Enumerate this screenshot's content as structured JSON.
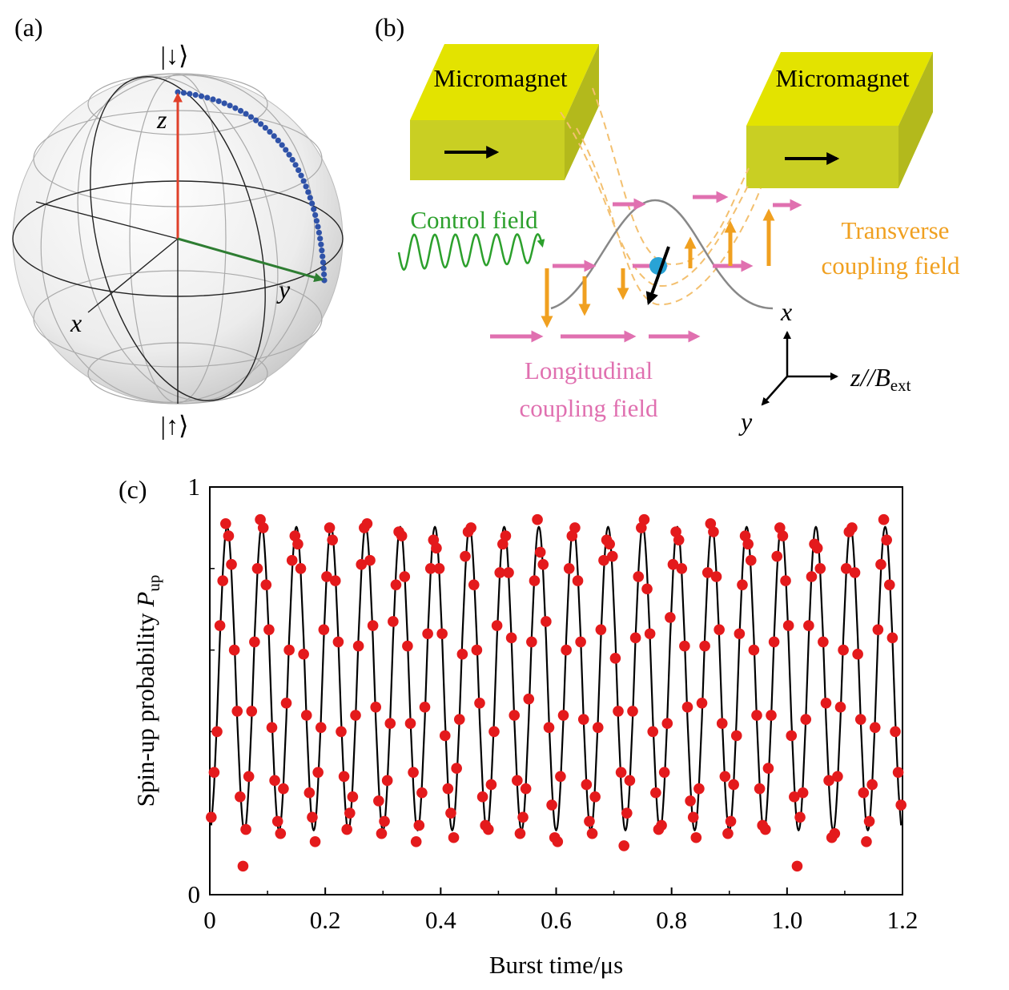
{
  "panels": {
    "a": {
      "label": "(a)",
      "top_state": "|↓⟩",
      "bottom_state": "|↑⟩",
      "axis_z": "z",
      "axis_y": "y",
      "axis_x": "x"
    },
    "b": {
      "label": "(b)",
      "magnet_left": "Micromagnet",
      "magnet_right": "Micromagnet",
      "control": "Control field",
      "transverse": [
        "Transverse",
        "coupling field"
      ],
      "longitudinal": [
        "Longitudinal",
        "coupling field"
      ],
      "coord_x": "x",
      "coord_y": "y",
      "coord_z": "z//B",
      "coord_z_sub": "ext"
    },
    "c": {
      "label": "(c)"
    }
  },
  "chart_data": {
    "type": "scatter",
    "xlabel": "Burst time/μs",
    "ylabel": "Spin-up probability ",
    "ylabel_symbol": "P",
    "ylabel_sub": "up",
    "xlim": [
      0,
      1.2
    ],
    "xticks": [
      0,
      0.2,
      0.4,
      0.6,
      0.8,
      {
        "value": 1,
        "label": "1.0"
      },
      1.2
    ],
    "xminor": [
      0.1,
      0.3,
      0.5,
      0.7,
      0.9,
      1.1
    ],
    "ylim": [
      0,
      1
    ],
    "yticks": [
      0,
      1
    ],
    "yminor": [
      0.2,
      0.4,
      0.6,
      0.8
    ],
    "x": [
      0.0025,
      0.0075,
      0.0125,
      0.0175,
      0.0225,
      0.0275,
      0.0325,
      0.0375,
      0.0425,
      0.0475,
      0.0525,
      0.0575,
      0.0625,
      0.0675,
      0.0725,
      0.0775,
      0.0825,
      0.0875,
      0.0925,
      0.0975,
      0.1025,
      0.1075,
      0.1125,
      0.1175,
      0.1225,
      0.1275,
      0.1325,
      0.1375,
      0.1425,
      0.1475,
      0.1525,
      0.1575,
      0.1625,
      0.1675,
      0.1725,
      0.1775,
      0.1825,
      0.1875,
      0.1925,
      0.1975,
      0.2025,
      0.2075,
      0.2125,
      0.2175,
      0.2225,
      0.2275,
      0.2325,
      0.2375,
      0.2425,
      0.2475,
      0.2525,
      0.2575,
      0.2625,
      0.2675,
      0.2725,
      0.2775,
      0.2825,
      0.2875,
      0.2925,
      0.2975,
      0.3025,
      0.3075,
      0.3125,
      0.3175,
      0.3225,
      0.3275,
      0.3325,
      0.3375,
      0.3425,
      0.3475,
      0.3525,
      0.3575,
      0.3625,
      0.3675,
      0.3725,
      0.3775,
      0.3825,
      0.3875,
      0.3925,
      0.3975,
      0.4025,
      0.4075,
      0.4125,
      0.4175,
      0.4225,
      0.4275,
      0.4325,
      0.4375,
      0.4425,
      0.4475,
      0.4525,
      0.4575,
      0.4625,
      0.4675,
      0.4725,
      0.4775,
      0.4825,
      0.4875,
      0.4925,
      0.4975,
      0.5025,
      0.5075,
      0.5125,
      0.5175,
      0.5225,
      0.5275,
      0.5325,
      0.5375,
      0.5425,
      0.5475,
      0.5525,
      0.5575,
      0.5625,
      0.5675,
      0.5725,
      0.5775,
      0.5825,
      0.5875,
      0.5925,
      0.5975,
      0.6025,
      0.6075,
      0.6125,
      0.6175,
      0.6225,
      0.6275,
      0.6325,
      0.6375,
      0.6425,
      0.6475,
      0.6525,
      0.6575,
      0.6625,
      0.6675,
      0.6725,
      0.6775,
      0.6825,
      0.6875,
      0.6925,
      0.6975,
      0.7025,
      0.7075,
      0.7125,
      0.7175,
      0.7225,
      0.7275,
      0.7325,
      0.7375,
      0.7425,
      0.7475,
      0.7525,
      0.7575,
      0.7625,
      0.7675,
      0.7725,
      0.7775,
      0.7825,
      0.7875,
      0.7925,
      0.7975,
      0.8025,
      0.8075,
      0.8125,
      0.8175,
      0.8225,
      0.8275,
      0.8325,
      0.8375,
      0.8425,
      0.8475,
      0.8525,
      0.8575,
      0.8625,
      0.8675,
      0.8725,
      0.8775,
      0.8825,
      0.8875,
      0.8925,
      0.8975,
      0.9025,
      0.9075,
      0.9125,
      0.9175,
      0.9225,
      0.9275,
      0.9325,
      0.9375,
      0.9425,
      0.9475,
      0.9525,
      0.9575,
      0.9625,
      0.9675,
      0.9725,
      0.9775,
      0.9825,
      0.9875,
      0.9925,
      0.9975,
      1.0025,
      1.0075,
      1.0125,
      1.0175,
      1.0225,
      1.0275,
      1.0325,
      1.0375,
      1.0425,
      1.0475,
      1.0525,
      1.0575,
      1.0625,
      1.0675,
      1.0725,
      1.0775,
      1.0825,
      1.0875,
      1.0925,
      1.0975,
      1.1025,
      1.1075,
      1.1125,
      1.1175,
      1.1225,
      1.1275,
      1.1325,
      1.1375,
      1.1425,
      1.1475,
      1.1525,
      1.1575,
      1.1625,
      1.1675,
      1.1725,
      1.1775,
      1.1825,
      1.1875,
      1.1925,
      1.1975
    ],
    "series": [
      {
        "name": "measurement",
        "kind": "dots",
        "color": "#e41a1c",
        "values": [
          0.19,
          0.3,
          0.4,
          0.66,
          0.77,
          0.91,
          0.88,
          0.81,
          0.6,
          0.45,
          0.24,
          0.07,
          0.16,
          0.29,
          0.45,
          0.62,
          0.8,
          0.92,
          0.9,
          0.76,
          0.65,
          0.41,
          0.28,
          0.18,
          0.15,
          0.26,
          0.47,
          0.6,
          0.82,
          0.88,
          0.86,
          0.8,
          0.59,
          0.44,
          0.25,
          0.19,
          0.13,
          0.3,
          0.41,
          0.65,
          0.78,
          0.9,
          0.87,
          0.77,
          0.62,
          0.4,
          0.29,
          0.16,
          0.2,
          0.24,
          0.44,
          0.61,
          0.81,
          0.9,
          0.91,
          0.82,
          0.66,
          0.46,
          0.23,
          0.15,
          0.18,
          0.28,
          0.42,
          0.67,
          0.76,
          0.89,
          0.88,
          0.78,
          0.61,
          0.42,
          0.3,
          0.13,
          0.17,
          0.25,
          0.46,
          0.64,
          0.8,
          0.87,
          0.85,
          0.8,
          0.64,
          0.39,
          0.26,
          0.2,
          0.14,
          0.31,
          0.43,
          0.59,
          0.83,
          0.89,
          0.9,
          0.76,
          0.6,
          0.47,
          0.24,
          0.17,
          0.16,
          0.27,
          0.4,
          0.66,
          0.79,
          0.86,
          0.88,
          0.79,
          0.63,
          0.44,
          0.28,
          0.15,
          0.19,
          0.26,
          0.48,
          0.62,
          0.77,
          0.92,
          0.84,
          0.81,
          0.67,
          0.41,
          0.22,
          0.14,
          0.13,
          0.29,
          0.44,
          0.6,
          0.8,
          0.88,
          0.9,
          0.77,
          0.62,
          0.43,
          0.27,
          0.18,
          0.15,
          0.24,
          0.41,
          0.65,
          0.82,
          0.87,
          0.86,
          0.83,
          0.58,
          0.45,
          0.3,
          0.12,
          0.2,
          0.28,
          0.45,
          0.63,
          0.78,
          0.9,
          0.92,
          0.75,
          0.64,
          0.4,
          0.25,
          0.16,
          0.17,
          0.3,
          0.42,
          0.68,
          0.81,
          0.89,
          0.87,
          0.8,
          0.61,
          0.46,
          0.23,
          0.19,
          0.14,
          0.26,
          0.47,
          0.61,
          0.79,
          0.91,
          0.89,
          0.78,
          0.65,
          0.42,
          0.29,
          0.15,
          0.18,
          0.27,
          0.39,
          0.64,
          0.76,
          0.88,
          0.86,
          0.82,
          0.6,
          0.44,
          0.26,
          0.17,
          0.16,
          0.31,
          0.44,
          0.62,
          0.83,
          0.9,
          0.88,
          0.77,
          0.66,
          0.39,
          0.24,
          0.07,
          0.19,
          0.25,
          0.43,
          0.66,
          0.78,
          0.86,
          0.85,
          0.8,
          0.62,
          0.47,
          0.28,
          0.14,
          0.15,
          0.29,
          0.46,
          0.6,
          0.8,
          0.89,
          0.9,
          0.79,
          0.59,
          0.43,
          0.25,
          0.13,
          0.18,
          0.27,
          0.41,
          0.65,
          0.81,
          0.92,
          0.87,
          0.76,
          0.63,
          0.4,
          0.3,
          0.22
        ]
      },
      {
        "name": "fit",
        "kind": "line",
        "color": "#000000",
        "values": [
          0.17,
          0.27,
          0.43,
          0.63,
          0.79,
          0.89,
          0.89,
          0.79,
          0.63,
          0.43,
          0.27,
          0.17,
          0.17,
          0.27,
          0.43,
          0.63,
          0.79,
          0.89,
          0.89,
          0.79,
          0.63,
          0.43,
          0.27,
          0.17,
          0.17,
          0.27,
          0.43,
          0.63,
          0.79,
          0.89,
          0.89,
          0.79,
          0.63,
          0.43,
          0.27,
          0.17,
          0.17,
          0.27,
          0.43,
          0.63,
          0.79,
          0.89,
          0.89,
          0.79,
          0.63,
          0.43,
          0.27,
          0.17,
          0.17,
          0.27,
          0.43,
          0.63,
          0.79,
          0.89,
          0.89,
          0.79,
          0.63,
          0.43,
          0.27,
          0.17,
          0.17,
          0.27,
          0.43,
          0.63,
          0.79,
          0.89,
          0.89,
          0.79,
          0.63,
          0.43,
          0.27,
          0.17,
          0.17,
          0.27,
          0.43,
          0.63,
          0.79,
          0.89,
          0.89,
          0.79,
          0.63,
          0.43,
          0.27,
          0.17,
          0.17,
          0.27,
          0.43,
          0.63,
          0.79,
          0.89,
          0.89,
          0.79,
          0.63,
          0.43,
          0.27,
          0.17,
          0.17,
          0.27,
          0.43,
          0.63,
          0.79,
          0.89,
          0.89,
          0.79,
          0.63,
          0.43,
          0.27,
          0.17,
          0.17,
          0.27,
          0.43,
          0.63,
          0.79,
          0.89,
          0.89,
          0.79,
          0.63,
          0.43,
          0.27,
          0.17,
          0.17,
          0.27,
          0.43,
          0.63,
          0.79,
          0.89,
          0.89,
          0.79,
          0.63,
          0.43,
          0.27,
          0.17,
          0.17,
          0.27,
          0.43,
          0.63,
          0.79,
          0.89,
          0.89,
          0.79,
          0.63,
          0.43,
          0.27,
          0.17,
          0.17,
          0.27,
          0.43,
          0.63,
          0.79,
          0.89,
          0.89,
          0.79,
          0.63,
          0.43,
          0.27,
          0.17,
          0.17,
          0.27,
          0.43,
          0.63,
          0.79,
          0.89,
          0.89,
          0.79,
          0.63,
          0.43,
          0.27,
          0.17,
          0.17,
          0.27,
          0.43,
          0.63,
          0.79,
          0.89,
          0.89,
          0.79,
          0.63,
          0.43,
          0.27,
          0.17,
          0.17,
          0.27,
          0.43,
          0.63,
          0.79,
          0.89,
          0.89,
          0.79,
          0.63,
          0.43,
          0.27,
          0.17,
          0.17,
          0.27,
          0.43,
          0.63,
          0.79,
          0.89,
          0.89,
          0.79,
          0.63,
          0.43,
          0.27,
          0.17,
          0.17,
          0.27,
          0.43,
          0.63,
          0.79,
          0.89,
          0.89,
          0.79,
          0.63,
          0.43,
          0.27,
          0.17,
          0.17,
          0.27,
          0.43,
          0.63,
          0.79,
          0.89,
          0.89,
          0.79,
          0.63,
          0.43,
          0.27,
          0.17,
          0.17,
          0.27,
          0.43,
          0.63,
          0.79,
          0.89,
          0.89,
          0.79,
          0.63,
          0.43,
          0.27,
          0.17
        ]
      }
    ]
  }
}
